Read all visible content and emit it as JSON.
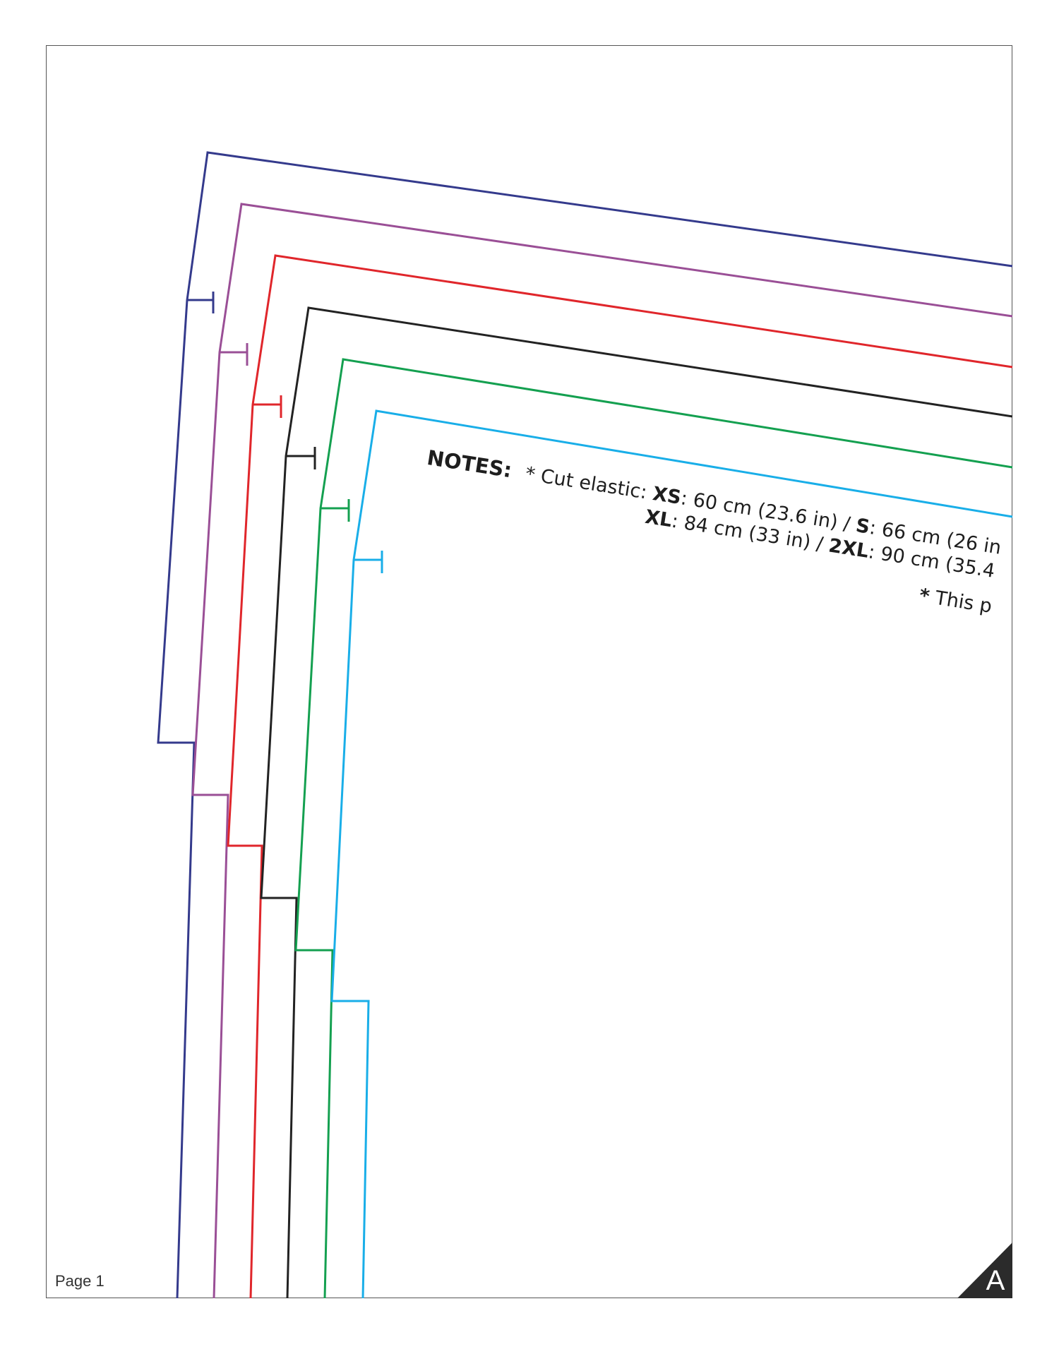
{
  "page": {
    "label": "Page 1",
    "corner_letter": "A"
  },
  "notes": {
    "title": "NOTES:",
    "line1": {
      "prefix": "* Cut elastic: ",
      "s1_size": "XS",
      "s1_value": ": 60 cm (23.6 in) / ",
      "s2_size": "S",
      "s2_value": ": 66 cm (26 in"
    },
    "line2": {
      "s1_size": "XL",
      "s1_value": ": 84 cm (33 in) / ",
      "s2_size": "2XL",
      "s2_value": ": 90 cm (35.4"
    },
    "line3": {
      "star": "*",
      "text": " This p"
    }
  },
  "size_colors": {
    "navy": "#343a8c",
    "purple": "#9a4f96",
    "red": "#e0262b",
    "black": "#222222",
    "green": "#14a050",
    "cyan": "#19aee8"
  }
}
